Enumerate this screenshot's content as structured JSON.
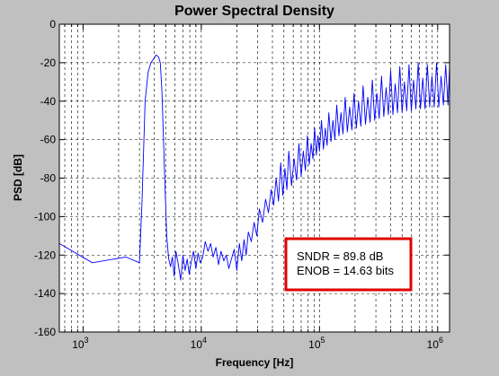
{
  "chart_data": {
    "type": "line",
    "title": "Power Spectral Density",
    "xlabel": "Frequency [Hz]",
    "ylabel": "PSD [dB]",
    "xscale": "log",
    "xlim": [
      630,
      1260000
    ],
    "ylim": [
      -160,
      0
    ],
    "grid": true,
    "x_ticks": [
      {
        "v": 1000,
        "base": "10",
        "exp": "3"
      },
      {
        "v": 10000,
        "base": "10",
        "exp": "4"
      },
      {
        "v": 100000,
        "base": "10",
        "exp": "5"
      },
      {
        "v": 1000000,
        "base": "10",
        "exp": "6"
      }
    ],
    "y_ticks": [
      {
        "v": 0,
        "label": "0"
      },
      {
        "v": -20,
        "label": "-20"
      },
      {
        "v": -40,
        "label": "-40"
      },
      {
        "v": -60,
        "label": "-60"
      },
      {
        "v": -80,
        "label": "-80"
      },
      {
        "v": -100,
        "label": "-100"
      },
      {
        "v": -120,
        "label": "-120"
      },
      {
        "v": -140,
        "label": "-140"
      },
      {
        "v": -160,
        "label": "-160"
      }
    ],
    "series": [
      {
        "color": "#0000ff",
        "x": [
          630,
          1200,
          2300,
          3000,
          3150,
          3350,
          3550,
          3750,
          3950,
          4150,
          4350,
          4500,
          4650,
          4850,
          5100,
          5300,
          5500,
          5700,
          5900,
          6100,
          6400,
          6700,
          7000,
          7300,
          7600,
          7900,
          8200,
          8600,
          9000,
          9400,
          9800,
          10300,
          10800,
          11400,
          12000,
          12600,
          13300,
          14000,
          14700,
          15500,
          16300,
          17100,
          18000,
          19000,
          20000,
          21000,
          22000,
          23000,
          24000,
          25000,
          26500,
          28000,
          29500,
          31000,
          33000,
          35000,
          37000,
          39000,
          41000,
          43000,
          45000,
          47000,
          49000,
          51000,
          53000,
          55000,
          58000,
          61000,
          64000,
          67000,
          70000,
          73000,
          76000,
          79000,
          82000,
          85000,
          88000,
          91000,
          94000,
          97000,
          100000,
          104000,
          108000,
          112000,
          116000,
          120000,
          125000,
          130000,
          135000,
          140000,
          146000,
          152000,
          158000,
          165000,
          172000,
          180000,
          188000,
          196000,
          205000,
          214000,
          224000,
          234000,
          245000,
          256000,
          268000,
          280000,
          293000,
          306000,
          320000,
          335000,
          350000,
          366000,
          383000,
          400000,
          418000,
          437000,
          457000,
          478000,
          500000,
          523000,
          547000,
          572000,
          598000,
          625000,
          654000,
          684000,
          715000,
          748000,
          782000,
          818000,
          855000,
          894000,
          935000,
          978000,
          1022000,
          1069000,
          1118000,
          1169000,
          1222000,
          1260000
        ],
        "y": [
          -114,
          -124,
          -121,
          -124,
          -93,
          -40,
          -25,
          -20,
          -18,
          -16,
          -17,
          -20,
          -35,
          -70,
          -110,
          -122,
          -126,
          -121,
          -131,
          -118,
          -125,
          -133,
          -120,
          -128,
          -122,
          -130,
          -124,
          -118,
          -127,
          -119,
          -124,
          -121,
          -113,
          -118,
          -114,
          -121,
          -116,
          -125,
          -118,
          -123,
          -120,
          -127,
          -122,
          -117,
          -128,
          -114,
          -123,
          -112,
          -120,
          -108,
          -113,
          -103,
          -110,
          -96,
          -103,
          -91,
          -98,
          -86,
          -94,
          -80,
          -92,
          -72,
          -89,
          -75,
          -86,
          -66,
          -84,
          -70,
          -81,
          -62,
          -79,
          -66,
          -76,
          -58,
          -73,
          -62,
          -70,
          -54,
          -68,
          -58,
          -66,
          -50,
          -65,
          -54,
          -63,
          -46,
          -61,
          -50,
          -60,
          -42,
          -58,
          -46,
          -57,
          -38,
          -56,
          -43,
          -55,
          -36,
          -54,
          -40,
          -53,
          -32,
          -52,
          -38,
          -51,
          -29,
          -50,
          -36,
          -49,
          -27,
          -48,
          -33,
          -47,
          -24,
          -47,
          -31,
          -46,
          -22,
          -46,
          -30,
          -45,
          -21,
          -45,
          -29,
          -44,
          -20,
          -44,
          -28,
          -44,
          -21,
          -43,
          -27,
          -43,
          -20,
          -43,
          -27,
          -42,
          -21,
          -42,
          -22
        ]
      }
    ],
    "annotations": [
      {
        "text": "SNDR = 89.8 dB"
      },
      {
        "text": "ENOB = 14.63 bits"
      }
    ],
    "annotation_box_color": "#e00000"
  }
}
